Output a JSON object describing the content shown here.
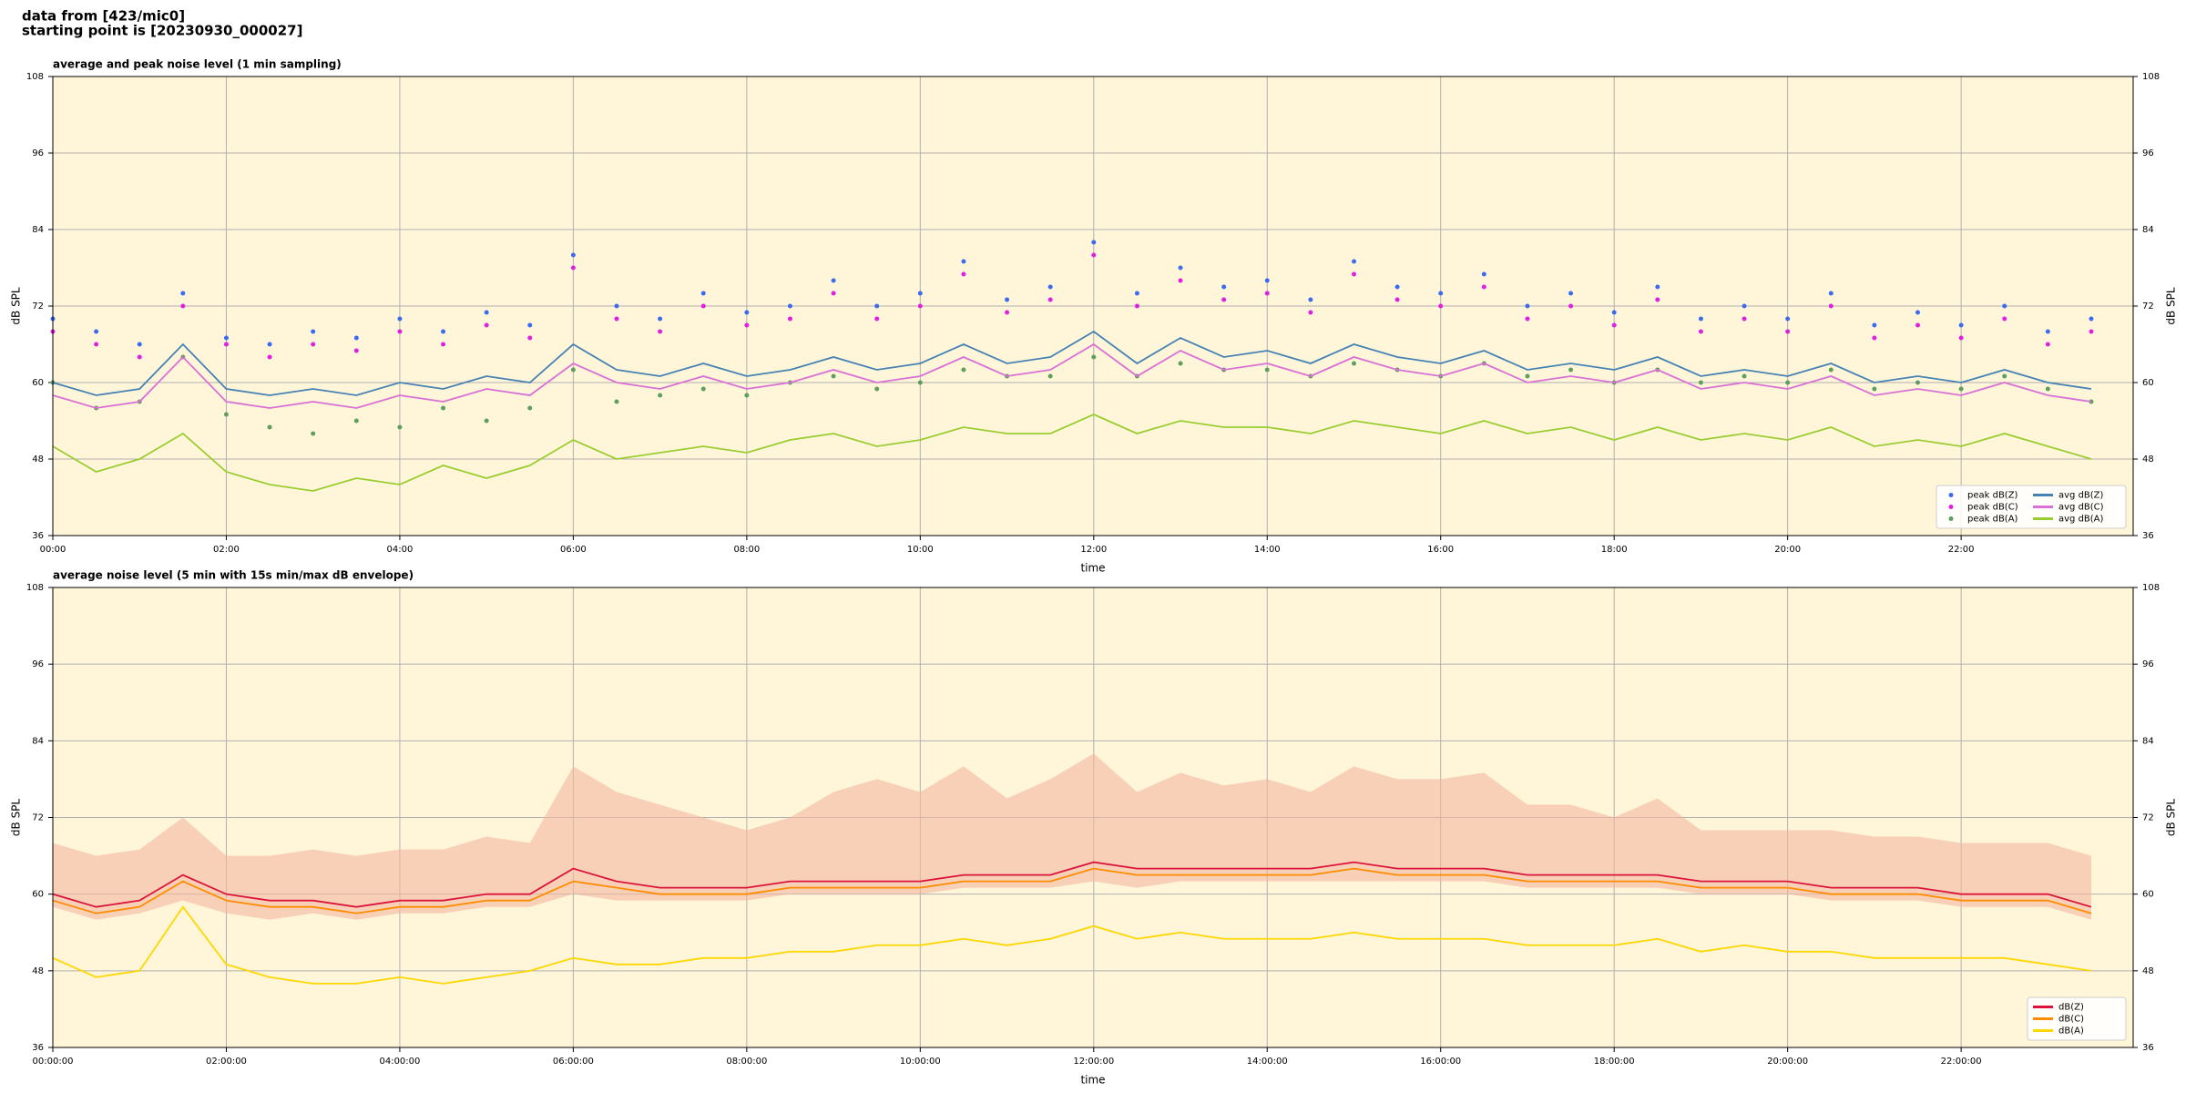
{
  "header": [
    "data from [423/mic0]",
    "starting point is [20230930_000027]"
  ],
  "chart_data": [
    {
      "type": "line",
      "title": "average and peak noise level (1 min sampling)",
      "xlabel": "time",
      "ylabel": "dB SPL",
      "legend": "lower right",
      "grid": true,
      "xlim": [
        0,
        1439
      ],
      "ylim": [
        36,
        108
      ],
      "yticks": [
        36,
        48,
        60,
        72,
        84,
        96,
        108
      ],
      "xticks": [
        {
          "value": 0,
          "label": "00:00"
        },
        {
          "value": 120,
          "label": "02:00"
        },
        {
          "value": 240,
          "label": "04:00"
        },
        {
          "value": 360,
          "label": "06:00"
        },
        {
          "value": 480,
          "label": "08:00"
        },
        {
          "value": 600,
          "label": "10:00"
        },
        {
          "value": 720,
          "label": "12:00"
        },
        {
          "value": 840,
          "label": "14:00"
        },
        {
          "value": 960,
          "label": "16:00"
        },
        {
          "value": 1080,
          "label": "18:00"
        },
        {
          "value": 1200,
          "label": "20:00"
        },
        {
          "value": 1320,
          "label": "22:00"
        }
      ],
      "x": [
        0,
        30,
        60,
        90,
        120,
        150,
        180,
        210,
        240,
        270,
        300,
        330,
        360,
        390,
        420,
        450,
        480,
        510,
        540,
        570,
        600,
        630,
        660,
        690,
        720,
        750,
        780,
        810,
        840,
        870,
        900,
        930,
        960,
        990,
        1020,
        1050,
        1080,
        1110,
        1140,
        1170,
        1200,
        1230,
        1260,
        1290,
        1320,
        1350,
        1380,
        1410
      ],
      "series": [
        {
          "name": "peak dB(Z)",
          "type": "scatter",
          "color": "#3b6cf0",
          "values": [
            70,
            68,
            66,
            74,
            67,
            66,
            68,
            67,
            70,
            68,
            71,
            69,
            80,
            72,
            70,
            74,
            71,
            72,
            76,
            72,
            74,
            79,
            73,
            75,
            82,
            74,
            78,
            75,
            76,
            73,
            79,
            75,
            74,
            77,
            72,
            74,
            71,
            75,
            70,
            72,
            70,
            74,
            69,
            71,
            69,
            72,
            68,
            70
          ]
        },
        {
          "name": "peak dB(C)",
          "type": "scatter",
          "color": "#e020e0",
          "values": [
            68,
            66,
            64,
            72,
            66,
            64,
            66,
            65,
            68,
            66,
            69,
            67,
            78,
            70,
            68,
            72,
            69,
            70,
            74,
            70,
            72,
            77,
            71,
            73,
            80,
            72,
            76,
            73,
            74,
            71,
            77,
            73,
            72,
            75,
            70,
            72,
            69,
            73,
            68,
            70,
            68,
            72,
            67,
            69,
            67,
            70,
            66,
            68
          ]
        },
        {
          "name": "peak dB(A)",
          "type": "scatter",
          "color": "#5e9e5e",
          "values": [
            60,
            56,
            57,
            64,
            55,
            53,
            52,
            54,
            53,
            56,
            54,
            56,
            62,
            57,
            58,
            59,
            58,
            60,
            61,
            59,
            60,
            62,
            61,
            61,
            64,
            61,
            63,
            62,
            62,
            61,
            63,
            62,
            61,
            63,
            61,
            62,
            60,
            62,
            60,
            61,
            60,
            62,
            59,
            60,
            59,
            61,
            59,
            57
          ]
        },
        {
          "name": "avg dB(Z)",
          "type": "line",
          "color": "#4682b4",
          "values": [
            60,
            58,
            59,
            66,
            59,
            58,
            59,
            58,
            60,
            59,
            61,
            60,
            66,
            62,
            61,
            63,
            61,
            62,
            64,
            62,
            63,
            66,
            63,
            64,
            68,
            63,
            67,
            64,
            65,
            63,
            66,
            64,
            63,
            65,
            62,
            63,
            62,
            64,
            61,
            62,
            61,
            63,
            60,
            61,
            60,
            62,
            60,
            59
          ]
        },
        {
          "name": "avg dB(C)",
          "type": "line",
          "color": "#da70d6",
          "values": [
            58,
            56,
            57,
            64,
            57,
            56,
            57,
            56,
            58,
            57,
            59,
            58,
            63,
            60,
            59,
            61,
            59,
            60,
            62,
            60,
            61,
            64,
            61,
            62,
            66,
            61,
            65,
            62,
            63,
            61,
            64,
            62,
            61,
            63,
            60,
            61,
            60,
            62,
            59,
            60,
            59,
            61,
            58,
            59,
            58,
            60,
            58,
            57
          ]
        },
        {
          "name": "avg dB(A)",
          "type": "line",
          "color": "#9acd32",
          "values": [
            50,
            46,
            48,
            52,
            46,
            44,
            43,
            45,
            44,
            47,
            45,
            47,
            51,
            48,
            49,
            50,
            49,
            51,
            52,
            50,
            51,
            53,
            52,
            52,
            55,
            52,
            54,
            53,
            53,
            52,
            54,
            53,
            52,
            54,
            52,
            53,
            51,
            53,
            51,
            52,
            51,
            53,
            50,
            51,
            50,
            52,
            50,
            48
          ]
        }
      ]
    },
    {
      "type": "line",
      "title": "average noise level (5 min with 15s min/max dB envelope)",
      "xlabel": "time",
      "ylabel": "dB SPL",
      "legend": "lower right",
      "grid": true,
      "xlim": [
        0,
        1439
      ],
      "ylim": [
        36,
        108
      ],
      "yticks": [
        36,
        48,
        60,
        72,
        84,
        96,
        108
      ],
      "xticks": [
        {
          "value": 0,
          "label": "00:00:00"
        },
        {
          "value": 120,
          "label": "02:00:00"
        },
        {
          "value": 240,
          "label": "04:00:00"
        },
        {
          "value": 360,
          "label": "06:00:00"
        },
        {
          "value": 480,
          "label": "08:00:00"
        },
        {
          "value": 600,
          "label": "10:00:00"
        },
        {
          "value": 720,
          "label": "12:00:00"
        },
        {
          "value": 840,
          "label": "14:00:00"
        },
        {
          "value": 960,
          "label": "16:00:00"
        },
        {
          "value": 1080,
          "label": "18:00:00"
        },
        {
          "value": 1200,
          "label": "20:00:00"
        },
        {
          "value": 1320,
          "label": "22:00:00"
        }
      ],
      "x": [
        0,
        30,
        60,
        90,
        120,
        150,
        180,
        210,
        240,
        270,
        300,
        330,
        360,
        390,
        420,
        450,
        480,
        510,
        540,
        570,
        600,
        630,
        660,
        690,
        720,
        750,
        780,
        810,
        840,
        870,
        900,
        930,
        960,
        990,
        1020,
        1050,
        1080,
        1110,
        1140,
        1170,
        1200,
        1230,
        1260,
        1290,
        1320,
        1350,
        1380,
        1410
      ],
      "envelope": {
        "color": "#f4b8a0",
        "max": [
          68,
          66,
          67,
          72,
          66,
          66,
          67,
          66,
          67,
          67,
          69,
          68,
          80,
          76,
          74,
          72,
          70,
          72,
          76,
          78,
          76,
          80,
          75,
          78,
          82,
          76,
          79,
          77,
          78,
          76,
          80,
          78,
          78,
          79,
          74,
          74,
          72,
          75,
          70,
          70,
          70,
          70,
          69,
          69,
          68,
          68,
          68,
          66
        ],
        "min": [
          58,
          56,
          57,
          59,
          57,
          56,
          57,
          56,
          57,
          57,
          58,
          58,
          60,
          59,
          59,
          59,
          59,
          60,
          60,
          60,
          60,
          61,
          61,
          61,
          62,
          61,
          62,
          62,
          62,
          62,
          62,
          62,
          62,
          62,
          61,
          61,
          61,
          61,
          60,
          60,
          60,
          59,
          59,
          59,
          58,
          58,
          58,
          56
        ]
      },
      "series": [
        {
          "name": "dB(Z)",
          "type": "line",
          "color": "#dc143c",
          "values": [
            60,
            58,
            59,
            63,
            60,
            59,
            59,
            58,
            59,
            59,
            60,
            60,
            64,
            62,
            61,
            61,
            61,
            62,
            62,
            62,
            62,
            63,
            63,
            63,
            65,
            64,
            64,
            64,
            64,
            64,
            65,
            64,
            64,
            64,
            63,
            63,
            63,
            63,
            62,
            62,
            62,
            61,
            61,
            61,
            60,
            60,
            60,
            58
          ]
        },
        {
          "name": "dB(C)",
          "type": "line",
          "color": "#ff8c00",
          "values": [
            59,
            57,
            58,
            62,
            59,
            58,
            58,
            57,
            58,
            58,
            59,
            59,
            62,
            61,
            60,
            60,
            60,
            61,
            61,
            61,
            61,
            62,
            62,
            62,
            64,
            63,
            63,
            63,
            63,
            63,
            64,
            63,
            63,
            63,
            62,
            62,
            62,
            62,
            61,
            61,
            61,
            60,
            60,
            60,
            59,
            59,
            59,
            57
          ]
        },
        {
          "name": "dB(A)",
          "type": "line",
          "color": "#ffd700",
          "values": [
            50,
            47,
            48,
            58,
            49,
            47,
            46,
            46,
            47,
            46,
            47,
            48,
            50,
            49,
            49,
            50,
            50,
            51,
            51,
            52,
            52,
            53,
            52,
            53,
            55,
            53,
            54,
            53,
            53,
            53,
            54,
            53,
            53,
            53,
            52,
            52,
            52,
            53,
            51,
            52,
            51,
            51,
            50,
            50,
            50,
            50,
            49,
            48
          ]
        }
      ]
    }
  ]
}
